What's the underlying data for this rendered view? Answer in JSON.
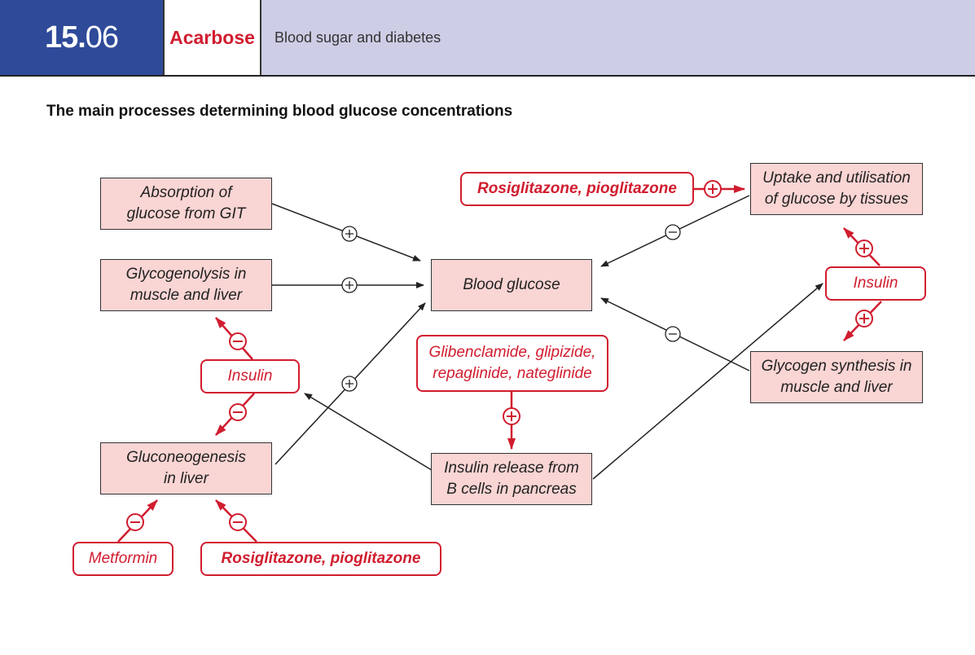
{
  "header": {
    "section_number_major": "15.",
    "section_number_minor": "06",
    "topic": "Acarbose",
    "chapter": "Blood sugar and diabetes"
  },
  "title": "The main processes determining blood glucose concentrations",
  "boxes": {
    "absorption": "Absorption of glucose from GIT",
    "glycogenolysis": "Glycogenolysis in muscle and liver",
    "gluconeogenesis": "Gluconeogenesis in liver",
    "blood_glucose": "Blood glucose",
    "insulin_release": "Insulin release from B cells in pancreas",
    "uptake": "Uptake and utilisation of glucose by tissues",
    "glycogen_synthesis": "Glycogen synthesis in muscle and liver"
  },
  "drugs": {
    "rosi_top": "Rosiglitazone, pioglitazone",
    "insulin_right": "Insulin",
    "insulin_left": "Insulin",
    "glibenclamide": "Glibenclamide, glipizide, repaglinide, nateglinide",
    "metformin": "Metformin",
    "rosi_bottom": "Rosiglitazone, pioglitazone"
  },
  "colors": {
    "header_blue": "#2e4a99",
    "header_lavender": "#cdcde6",
    "accent_red": "#d11d2f",
    "box_fill": "#f9d5d4"
  }
}
